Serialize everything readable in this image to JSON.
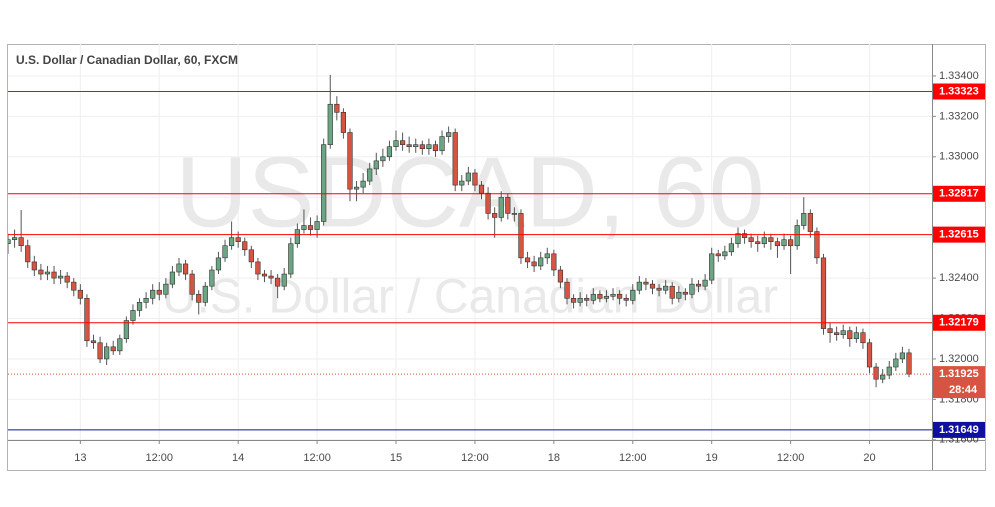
{
  "chart_data": {
    "type": "candlestick",
    "title": "U.S. Dollar / Canadian Dollar, 60, FXCM",
    "watermark": "USDCAD, 60",
    "watermark_subtitle": "U.S. Dollar / Canadian Dollar",
    "up_color": "#6ba583",
    "down_color": "#d75442",
    "grid": true,
    "ylim": [
      1.31599,
      1.33558
    ],
    "yticks": [
      {
        "value": 1.316,
        "label": "1.31600"
      },
      {
        "value": 1.318,
        "label": "1.31800"
      },
      {
        "value": 1.32,
        "label": "1.32000"
      },
      {
        "value": 1.322,
        "label": "1.32200"
      },
      {
        "value": 1.324,
        "label": "1.32400"
      },
      {
        "value": 1.326,
        "label": "1.32600"
      },
      {
        "value": 1.328,
        "label": "1.32800"
      },
      {
        "value": 1.33,
        "label": "1.33000"
      },
      {
        "value": 1.332,
        "label": "1.33200"
      },
      {
        "value": 1.334,
        "label": "1.33400"
      }
    ],
    "xlim": [
      0,
      140.5
    ],
    "xticks": [
      {
        "value": 11,
        "label": "13"
      },
      {
        "value": 23,
        "label": "12:00"
      },
      {
        "value": 35,
        "label": "14"
      },
      {
        "value": 47,
        "label": "12:00"
      },
      {
        "value": 59,
        "label": "15"
      },
      {
        "value": 71,
        "label": "12:00"
      },
      {
        "value": 83,
        "label": "18"
      },
      {
        "value": 95,
        "label": "12:00"
      },
      {
        "value": 107,
        "label": "19"
      },
      {
        "value": 119,
        "label": "12:00"
      },
      {
        "value": 131,
        "label": "20"
      }
    ],
    "levels": [
      {
        "value": 1.33323,
        "label": "1.33323",
        "color": "#ff0000"
      },
      {
        "value": 1.32817,
        "label": "1.32817",
        "color": "#ff0000"
      },
      {
        "value": 1.32615,
        "label": "1.32615",
        "color": "#ff0000"
      },
      {
        "value": 1.32179,
        "label": "1.32179",
        "color": "#ff0000"
      },
      {
        "value": 1.31649,
        "label": "1.31649",
        "color": "#1010a0"
      }
    ],
    "last_price": {
      "value": 1.31925,
      "label": "1.31925",
      "countdown": "28:44"
    },
    "candles": [
      [
        1.3257,
        1.3262,
        1.3252,
        1.3259
      ],
      [
        1.3259,
        1.3264,
        1.3255,
        1.326
      ],
      [
        1.326,
        1.32737,
        1.3253,
        1.3256
      ],
      [
        1.3256,
        1.3259,
        1.3245,
        1.3248
      ],
      [
        1.3248,
        1.3251,
        1.3241,
        1.3244
      ],
      [
        1.3244,
        1.3247,
        1.3239,
        1.3242
      ],
      [
        1.3242,
        1.3246,
        1.3239,
        1.3243
      ],
      [
        1.3243,
        1.3246,
        1.3237,
        1.324
      ],
      [
        1.324,
        1.3244,
        1.3237,
        1.3241
      ],
      [
        1.3241,
        1.3243,
        1.3235,
        1.3238
      ],
      [
        1.3238,
        1.324,
        1.3231,
        1.3234
      ],
      [
        1.3234,
        1.3237,
        1.3227,
        1.323
      ],
      [
        1.323,
        1.3232,
        1.3206,
        1.3209
      ],
      [
        1.3209,
        1.3212,
        1.3205,
        1.3208
      ],
      [
        1.3208,
        1.3211,
        1.3198,
        1.32
      ],
      [
        1.32,
        1.3208,
        1.3197,
        1.3206
      ],
      [
        1.3206,
        1.3209,
        1.3202,
        1.3204
      ],
      [
        1.3204,
        1.3212,
        1.3202,
        1.321
      ],
      [
        1.321,
        1.3221,
        1.3208,
        1.3219
      ],
      [
        1.3219,
        1.3227,
        1.3217,
        1.3224
      ],
      [
        1.3224,
        1.323,
        1.3221,
        1.3228
      ],
      [
        1.3228,
        1.3233,
        1.3225,
        1.323
      ],
      [
        1.323,
        1.3237,
        1.3227,
        1.3234
      ],
      [
        1.3234,
        1.3238,
        1.3229,
        1.3232
      ],
      [
        1.3232,
        1.324,
        1.323,
        1.3237
      ],
      [
        1.3237,
        1.3246,
        1.3235,
        1.3243
      ],
      [
        1.3243,
        1.325,
        1.3241,
        1.3247
      ],
      [
        1.3247,
        1.3249,
        1.3239,
        1.3242
      ],
      [
        1.3242,
        1.3244,
        1.3229,
        1.3232
      ],
      [
        1.3232,
        1.3234,
        1.3222,
        1.3228
      ],
      [
        1.3228,
        1.3238,
        1.3226,
        1.3236
      ],
      [
        1.3236,
        1.3246,
        1.3234,
        1.3244
      ],
      [
        1.3244,
        1.3253,
        1.3242,
        1.325
      ],
      [
        1.325,
        1.3259,
        1.3248,
        1.3256
      ],
      [
        1.3256,
        1.3268,
        1.3254,
        1.326
      ],
      [
        1.326,
        1.3263,
        1.3255,
        1.3258
      ],
      [
        1.3258,
        1.326,
        1.3251,
        1.3254
      ],
      [
        1.3254,
        1.3256,
        1.3245,
        1.3248
      ],
      [
        1.3248,
        1.325,
        1.3239,
        1.3242
      ],
      [
        1.3242,
        1.3244,
        1.3238,
        1.3241
      ],
      [
        1.3241,
        1.3244,
        1.3237,
        1.324
      ],
      [
        1.324,
        1.3242,
        1.323,
        1.3236
      ],
      [
        1.3236,
        1.3245,
        1.3234,
        1.3242
      ],
      [
        1.3242,
        1.326,
        1.324,
        1.3257
      ],
      [
        1.3257,
        1.3267,
        1.3255,
        1.3264
      ],
      [
        1.3264,
        1.3274,
        1.3262,
        1.3266
      ],
      [
        1.3266,
        1.327,
        1.3261,
        1.3264
      ],
      [
        1.3264,
        1.3271,
        1.326,
        1.3268
      ],
      [
        1.3268,
        1.3309,
        1.3266,
        1.3306
      ],
      [
        1.3306,
        1.33405,
        1.3304,
        1.3326
      ],
      [
        1.3326,
        1.333,
        1.3318,
        1.3322
      ],
      [
        1.3322,
        1.3324,
        1.3309,
        1.3312
      ],
      [
        1.3312,
        1.3314,
        1.3278,
        1.3284
      ],
      [
        1.3284,
        1.3288,
        1.3278,
        1.3285
      ],
      [
        1.3285,
        1.3292,
        1.3282,
        1.3288
      ],
      [
        1.3288,
        1.3297,
        1.3286,
        1.3294
      ],
      [
        1.3294,
        1.3302,
        1.3291,
        1.3298
      ],
      [
        1.3298,
        1.3304,
        1.3295,
        1.33
      ],
      [
        1.33,
        1.3308,
        1.3298,
        1.3305
      ],
      [
        1.3305,
        1.3313,
        1.3303,
        1.3308
      ],
      [
        1.3308,
        1.3312,
        1.3303,
        1.3306
      ],
      [
        1.3306,
        1.331,
        1.3302,
        1.3305
      ],
      [
        1.3305,
        1.3309,
        1.3302,
        1.3306
      ],
      [
        1.3306,
        1.3308,
        1.3301,
        1.3304
      ],
      [
        1.3304,
        1.3309,
        1.3301,
        1.3306
      ],
      [
        1.3306,
        1.3308,
        1.33,
        1.3303
      ],
      [
        1.3303,
        1.3313,
        1.3301,
        1.331
      ],
      [
        1.331,
        1.3315,
        1.3307,
        1.3312
      ],
      [
        1.3312,
        1.3314,
        1.3283,
        1.3286
      ],
      [
        1.3286,
        1.3291,
        1.3283,
        1.3288
      ],
      [
        1.3288,
        1.3295,
        1.3286,
        1.3292
      ],
      [
        1.3292,
        1.3294,
        1.3283,
        1.3286
      ],
      [
        1.3286,
        1.3288,
        1.3279,
        1.3282
      ],
      [
        1.3282,
        1.3285,
        1.3269,
        1.3272
      ],
      [
        1.3272,
        1.3275,
        1.326,
        1.327
      ],
      [
        1.327,
        1.3283,
        1.3268,
        1.328
      ],
      [
        1.328,
        1.3282,
        1.3269,
        1.3272
      ],
      [
        1.3272,
        1.3275,
        1.3268,
        1.3272
      ],
      [
        1.3272,
        1.3274,
        1.3247,
        1.325
      ],
      [
        1.325,
        1.3253,
        1.3245,
        1.3248
      ],
      [
        1.3248,
        1.3251,
        1.3243,
        1.3246
      ],
      [
        1.3246,
        1.3253,
        1.3244,
        1.325
      ],
      [
        1.325,
        1.3255,
        1.3247,
        1.3252
      ],
      [
        1.3252,
        1.3254,
        1.3241,
        1.3244
      ],
      [
        1.3244,
        1.3246,
        1.3235,
        1.3238
      ],
      [
        1.3238,
        1.324,
        1.3227,
        1.323
      ],
      [
        1.323,
        1.3232,
        1.3225,
        1.3228
      ],
      [
        1.3228,
        1.3233,
        1.3226,
        1.323
      ],
      [
        1.323,
        1.3232,
        1.3226,
        1.3229
      ],
      [
        1.3229,
        1.3235,
        1.3227,
        1.3232
      ],
      [
        1.3232,
        1.3234,
        1.3228,
        1.323
      ],
      [
        1.323,
        1.3234,
        1.3228,
        1.3231
      ],
      [
        1.3231,
        1.3235,
        1.3229,
        1.3232
      ],
      [
        1.3232,
        1.3234,
        1.3227,
        1.323
      ],
      [
        1.323,
        1.3232,
        1.3226,
        1.3229
      ],
      [
        1.3229,
        1.3237,
        1.3227,
        1.3234
      ],
      [
        1.3234,
        1.3241,
        1.3232,
        1.3238
      ],
      [
        1.3238,
        1.324,
        1.3234,
        1.3237
      ],
      [
        1.3237,
        1.3239,
        1.3232,
        1.3235
      ],
      [
        1.3235,
        1.3237,
        1.3231,
        1.3234
      ],
      [
        1.3234,
        1.3239,
        1.3232,
        1.3236
      ],
      [
        1.3236,
        1.3238,
        1.3227,
        1.323
      ],
      [
        1.323,
        1.3236,
        1.3228,
        1.3233
      ],
      [
        1.3233,
        1.3235,
        1.3229,
        1.3232
      ],
      [
        1.3232,
        1.324,
        1.323,
        1.3237
      ],
      [
        1.3237,
        1.3239,
        1.3233,
        1.3236
      ],
      [
        1.3236,
        1.3242,
        1.3234,
        1.3239
      ],
      [
        1.3239,
        1.3255,
        1.3237,
        1.3252
      ],
      [
        1.3252,
        1.3254,
        1.3248,
        1.3251
      ],
      [
        1.3251,
        1.3256,
        1.3249,
        1.3253
      ],
      [
        1.3253,
        1.326,
        1.3251,
        1.3257
      ],
      [
        1.3257,
        1.3265,
        1.3255,
        1.3262
      ],
      [
        1.3262,
        1.3264,
        1.3257,
        1.326
      ],
      [
        1.326,
        1.3262,
        1.3255,
        1.3258
      ],
      [
        1.3258,
        1.3261,
        1.3253,
        1.3257
      ],
      [
        1.3257,
        1.3263,
        1.3255,
        1.326
      ],
      [
        1.326,
        1.3262,
        1.3254,
        1.3258
      ],
      [
        1.3258,
        1.326,
        1.325,
        1.3256
      ],
      [
        1.3256,
        1.3262,
        1.3254,
        1.3259
      ],
      [
        1.3259,
        1.3261,
        1.3242,
        1.3256
      ],
      [
        1.3256,
        1.3269,
        1.3254,
        1.3266
      ],
      [
        1.3266,
        1.328,
        1.3264,
        1.3272
      ],
      [
        1.3272,
        1.3274,
        1.326,
        1.3263
      ],
      [
        1.3263,
        1.3265,
        1.3247,
        1.325
      ],
      [
        1.325,
        1.3252,
        1.3212,
        1.3215
      ],
      [
        1.3215,
        1.3218,
        1.3208,
        1.3213
      ],
      [
        1.3213,
        1.3216,
        1.3209,
        1.3212
      ],
      [
        1.3212,
        1.3217,
        1.321,
        1.3214
      ],
      [
        1.3214,
        1.3216,
        1.3206,
        1.321
      ],
      [
        1.321,
        1.3216,
        1.3208,
        1.3213
      ],
      [
        1.3213,
        1.3215,
        1.3205,
        1.3208
      ],
      [
        1.3208,
        1.321,
        1.3193,
        1.3196
      ],
      [
        1.3196,
        1.3198,
        1.3186,
        1.319
      ],
      [
        1.319,
        1.3195,
        1.3188,
        1.3192
      ],
      [
        1.3192,
        1.3199,
        1.319,
        1.3196
      ],
      [
        1.3196,
        1.3203,
        1.3194,
        1.32
      ],
      [
        1.32,
        1.3206,
        1.3198,
        1.3203
      ],
      [
        1.3203,
        1.3205,
        1.3191,
        1.31925
      ]
    ]
  }
}
